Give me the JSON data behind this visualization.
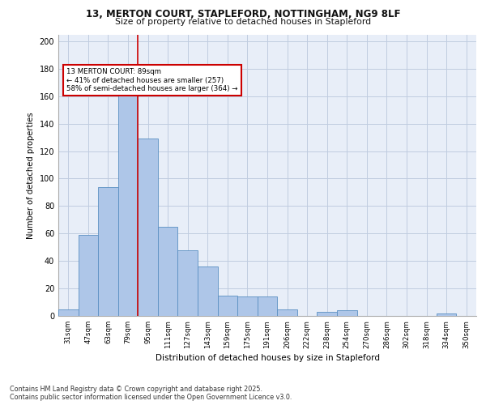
{
  "title_line1": "13, MERTON COURT, STAPLEFORD, NOTTINGHAM, NG9 8LF",
  "title_line2": "Size of property relative to detached houses in Stapleford",
  "xlabel": "Distribution of detached houses by size in Stapleford",
  "ylabel": "Number of detached properties",
  "bar_labels": [
    "31sqm",
    "47sqm",
    "63sqm",
    "79sqm",
    "95sqm",
    "111sqm",
    "127sqm",
    "143sqm",
    "159sqm",
    "175sqm",
    "191sqm",
    "206sqm",
    "222sqm",
    "238sqm",
    "254sqm",
    "270sqm",
    "286sqm",
    "302sqm",
    "318sqm",
    "334sqm",
    "350sqm"
  ],
  "bar_values": [
    5,
    59,
    94,
    164,
    129,
    65,
    48,
    36,
    15,
    14,
    14,
    5,
    0,
    3,
    4,
    0,
    0,
    0,
    0,
    2,
    0
  ],
  "bar_color": "#aec6e8",
  "bar_edge_color": "#5a8fc2",
  "background_color": "#e8eef8",
  "grid_color": "#c0cce0",
  "property_line_x": 3.5,
  "annotation_text": "13 MERTON COURT: 89sqm\n← 41% of detached houses are smaller (257)\n58% of semi-detached houses are larger (364) →",
  "annotation_box_color": "#ffffff",
  "annotation_box_edge": "#cc0000",
  "vline_color": "#cc0000",
  "footer_line1": "Contains HM Land Registry data © Crown copyright and database right 2025.",
  "footer_line2": "Contains public sector information licensed under the Open Government Licence v3.0.",
  "ylim": [
    0,
    205
  ],
  "yticks": [
    0,
    20,
    40,
    60,
    80,
    100,
    120,
    140,
    160,
    180,
    200
  ]
}
